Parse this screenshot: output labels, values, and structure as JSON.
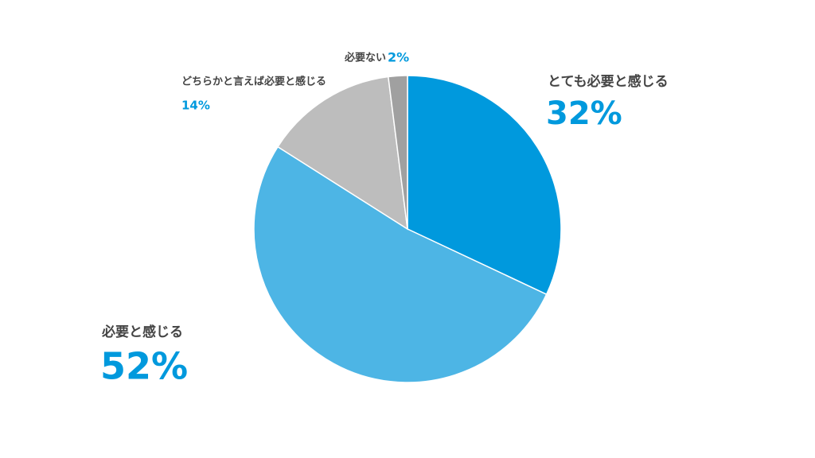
{
  "chart_data": {
    "type": "pie",
    "categories": [
      "とても必要と感じる",
      "必要と感じる",
      "どちらかと言えば必要と感じる",
      "必要ない"
    ],
    "values": [
      32,
      52,
      14,
      2
    ],
    "value_labels": [
      "32%",
      "52%",
      "14%",
      "2%"
    ],
    "colors": [
      "#0099dd",
      "#4db5e5",
      "#bdbdbd",
      "#a0a0a0"
    ]
  }
}
